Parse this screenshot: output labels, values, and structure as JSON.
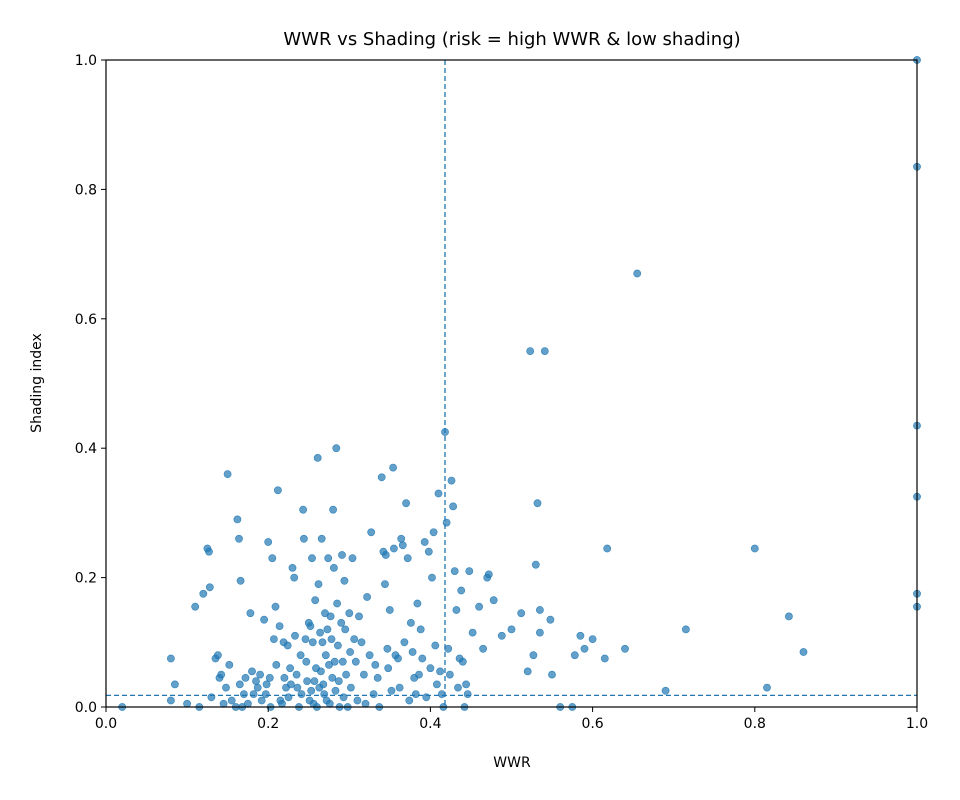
{
  "chart_data": {
    "type": "scatter",
    "title": "WWR vs Shading (risk = high WWR & low shading)",
    "xlabel": "WWR",
    "ylabel": "Shading index",
    "xlim": [
      0.0,
      1.0
    ],
    "ylim": [
      0.0,
      1.0
    ],
    "xticks": [
      "0.0",
      "0.2",
      "0.4",
      "0.6",
      "0.8",
      "1.0"
    ],
    "yticks": [
      "0.0",
      "0.2",
      "0.4",
      "0.6",
      "0.8",
      "1.0"
    ],
    "grid": false,
    "thresholds": {
      "x": 0.418,
      "y": 0.018
    },
    "colors": {
      "point": "#1f77b4",
      "threshold": "#1f77b4"
    },
    "points": [
      [
        0.02,
        0.0
      ],
      [
        0.08,
        0.075
      ],
      [
        0.085,
        0.035
      ],
      [
        0.08,
        0.01
      ],
      [
        0.1,
        0.005
      ],
      [
        0.11,
        0.155
      ],
      [
        0.115,
        0.0
      ],
      [
        0.12,
        0.175
      ],
      [
        0.125,
        0.245
      ],
      [
        0.127,
        0.24
      ],
      [
        0.128,
        0.185
      ],
      [
        0.13,
        0.015
      ],
      [
        0.135,
        0.075
      ],
      [
        0.138,
        0.08
      ],
      [
        0.14,
        0.045
      ],
      [
        0.142,
        0.05
      ],
      [
        0.145,
        0.005
      ],
      [
        0.148,
        0.03
      ],
      [
        0.15,
        0.36
      ],
      [
        0.152,
        0.065
      ],
      [
        0.155,
        0.01
      ],
      [
        0.16,
        0.0
      ],
      [
        0.162,
        0.29
      ],
      [
        0.164,
        0.26
      ],
      [
        0.165,
        0.035
      ],
      [
        0.166,
        0.195
      ],
      [
        0.168,
        0.0
      ],
      [
        0.17,
        0.02
      ],
      [
        0.172,
        0.045
      ],
      [
        0.175,
        0.005
      ],
      [
        0.178,
        0.145
      ],
      [
        0.18,
        0.055
      ],
      [
        0.182,
        0.02
      ],
      [
        0.185,
        0.04
      ],
      [
        0.187,
        0.03
      ],
      [
        0.19,
        0.05
      ],
      [
        0.192,
        0.01
      ],
      [
        0.195,
        0.135
      ],
      [
        0.197,
        0.02
      ],
      [
        0.198,
        0.035
      ],
      [
        0.2,
        0.255
      ],
      [
        0.202,
        0.045
      ],
      [
        0.203,
        0.0
      ],
      [
        0.205,
        0.23
      ],
      [
        0.207,
        0.105
      ],
      [
        0.209,
        0.155
      ],
      [
        0.21,
        0.065
      ],
      [
        0.212,
        0.335
      ],
      [
        0.214,
        0.125
      ],
      [
        0.215,
        0.01
      ],
      [
        0.217,
        0.005
      ],
      [
        0.219,
        0.1
      ],
      [
        0.22,
        0.045
      ],
      [
        0.222,
        0.03
      ],
      [
        0.224,
        0.095
      ],
      [
        0.225,
        0.015
      ],
      [
        0.227,
        0.06
      ],
      [
        0.228,
        0.035
      ],
      [
        0.23,
        0.215
      ],
      [
        0.232,
        0.2
      ],
      [
        0.233,
        0.11
      ],
      [
        0.235,
        0.05
      ],
      [
        0.236,
        0.03
      ],
      [
        0.238,
        0.0
      ],
      [
        0.24,
        0.08
      ],
      [
        0.241,
        0.02
      ],
      [
        0.243,
        0.305
      ],
      [
        0.244,
        0.26
      ],
      [
        0.246,
        0.105
      ],
      [
        0.247,
        0.07
      ],
      [
        0.248,
        0.04
      ],
      [
        0.25,
        0.13
      ],
      [
        0.251,
        0.01
      ],
      [
        0.252,
        0.125
      ],
      [
        0.253,
        0.025
      ],
      [
        0.254,
        0.23
      ],
      [
        0.255,
        0.1
      ],
      [
        0.256,
        0.005
      ],
      [
        0.257,
        0.04
      ],
      [
        0.258,
        0.165
      ],
      [
        0.259,
        0.06
      ],
      [
        0.26,
        0.0
      ],
      [
        0.261,
        0.385
      ],
      [
        0.262,
        0.19
      ],
      [
        0.263,
        0.03
      ],
      [
        0.264,
        0.115
      ],
      [
        0.265,
        0.055
      ],
      [
        0.266,
        0.26
      ],
      [
        0.267,
        0.1
      ],
      [
        0.268,
        0.035
      ],
      [
        0.269,
        0.02
      ],
      [
        0.27,
        0.145
      ],
      [
        0.271,
        0.08
      ],
      [
        0.272,
        0.01
      ],
      [
        0.273,
        0.12
      ],
      [
        0.274,
        0.23
      ],
      [
        0.275,
        0.065
      ],
      [
        0.276,
        0.005
      ],
      [
        0.277,
        0.14
      ],
      [
        0.278,
        0.105
      ],
      [
        0.279,
        0.045
      ],
      [
        0.28,
        0.305
      ],
      [
        0.281,
        0.215
      ],
      [
        0.282,
        0.07
      ],
      [
        0.283,
        0.025
      ],
      [
        0.284,
        0.4
      ],
      [
        0.285,
        0.16
      ],
      [
        0.286,
        0.095
      ],
      [
        0.287,
        0.04
      ],
      [
        0.288,
        0.0
      ],
      [
        0.29,
        0.13
      ],
      [
        0.291,
        0.235
      ],
      [
        0.292,
        0.07
      ],
      [
        0.293,
        0.015
      ],
      [
        0.294,
        0.195
      ],
      [
        0.295,
        0.12
      ],
      [
        0.296,
        0.05
      ],
      [
        0.298,
        0.0
      ],
      [
        0.3,
        0.145
      ],
      [
        0.301,
        0.085
      ],
      [
        0.302,
        0.03
      ],
      [
        0.304,
        0.23
      ],
      [
        0.306,
        0.105
      ],
      [
        0.308,
        0.07
      ],
      [
        0.31,
        0.01
      ],
      [
        0.312,
        0.14
      ],
      [
        0.315,
        0.1
      ],
      [
        0.318,
        0.05
      ],
      [
        0.32,
        0.005
      ],
      [
        0.322,
        0.17
      ],
      [
        0.325,
        0.08
      ],
      [
        0.327,
        0.27
      ],
      [
        0.33,
        0.02
      ],
      [
        0.332,
        0.065
      ],
      [
        0.335,
        0.045
      ],
      [
        0.337,
        0.0
      ],
      [
        0.34,
        0.355
      ],
      [
        0.342,
        0.24
      ],
      [
        0.344,
        0.19
      ],
      [
        0.345,
        0.235
      ],
      [
        0.347,
        0.09
      ],
      [
        0.348,
        0.06
      ],
      [
        0.35,
        0.15
      ],
      [
        0.352,
        0.025
      ],
      [
        0.354,
        0.37
      ],
      [
        0.355,
        0.245
      ],
      [
        0.357,
        0.08
      ],
      [
        0.36,
        0.075
      ],
      [
        0.362,
        0.03
      ],
      [
        0.364,
        0.26
      ],
      [
        0.366,
        0.25
      ],
      [
        0.368,
        0.1
      ],
      [
        0.37,
        0.315
      ],
      [
        0.372,
        0.23
      ],
      [
        0.374,
        0.01
      ],
      [
        0.376,
        0.13
      ],
      [
        0.378,
        0.085
      ],
      [
        0.38,
        0.045
      ],
      [
        0.382,
        0.02
      ],
      [
        0.384,
        0.16
      ],
      [
        0.386,
        0.05
      ],
      [
        0.388,
        0.12
      ],
      [
        0.39,
        0.075
      ],
      [
        0.393,
        0.255
      ],
      [
        0.395,
        0.015
      ],
      [
        0.398,
        0.24
      ],
      [
        0.4,
        0.06
      ],
      [
        0.402,
        0.2
      ],
      [
        0.404,
        0.27
      ],
      [
        0.406,
        0.095
      ],
      [
        0.408,
        0.035
      ],
      [
        0.41,
        0.33
      ],
      [
        0.412,
        0.055
      ],
      [
        0.414,
        0.02
      ],
      [
        0.416,
        0.0
      ],
      [
        0.418,
        0.425
      ],
      [
        0.42,
        0.285
      ],
      [
        0.422,
        0.09
      ],
      [
        0.424,
        0.05
      ],
      [
        0.426,
        0.35
      ],
      [
        0.428,
        0.31
      ],
      [
        0.43,
        0.21
      ],
      [
        0.432,
        0.15
      ],
      [
        0.434,
        0.03
      ],
      [
        0.436,
        0.075
      ],
      [
        0.438,
        0.18
      ],
      [
        0.44,
        0.07
      ],
      [
        0.442,
        0.0
      ],
      [
        0.444,
        0.035
      ],
      [
        0.446,
        0.02
      ],
      [
        0.448,
        0.21
      ],
      [
        0.452,
        0.115
      ],
      [
        0.46,
        0.155
      ],
      [
        0.465,
        0.09
      ],
      [
        0.47,
        0.2
      ],
      [
        0.472,
        0.205
      ],
      [
        0.478,
        0.165
      ],
      [
        0.488,
        0.11
      ],
      [
        0.5,
        0.12
      ],
      [
        0.512,
        0.145
      ],
      [
        0.52,
        0.055
      ],
      [
        0.523,
        0.55
      ],
      [
        0.527,
        0.08
      ],
      [
        0.53,
        0.22
      ],
      [
        0.532,
        0.315
      ],
      [
        0.535,
        0.15
      ],
      [
        0.535,
        0.115
      ],
      [
        0.541,
        0.55
      ],
      [
        0.548,
        0.135
      ],
      [
        0.55,
        0.05
      ],
      [
        0.56,
        0.0
      ],
      [
        0.575,
        0.0
      ],
      [
        0.578,
        0.08
      ],
      [
        0.585,
        0.11
      ],
      [
        0.59,
        0.09
      ],
      [
        0.6,
        0.105
      ],
      [
        0.615,
        0.075
      ],
      [
        0.618,
        0.245
      ],
      [
        0.64,
        0.09
      ],
      [
        0.655,
        0.67
      ],
      [
        0.69,
        0.025
      ],
      [
        0.715,
        0.12
      ],
      [
        0.8,
        0.245
      ],
      [
        0.815,
        0.03
      ],
      [
        0.842,
        0.14
      ],
      [
        0.86,
        0.085
      ],
      [
        1.0,
        1.0
      ],
      [
        1.0,
        0.835
      ],
      [
        1.0,
        0.435
      ],
      [
        1.0,
        0.325
      ],
      [
        1.0,
        0.175
      ],
      [
        1.0,
        0.155
      ]
    ]
  }
}
